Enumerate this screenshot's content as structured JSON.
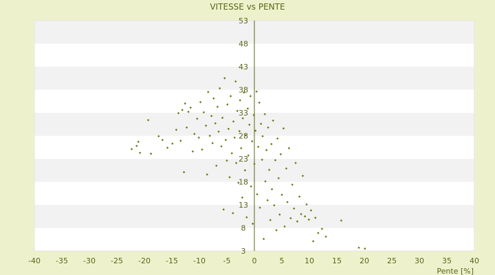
{
  "chart_data": {
    "type": "scatter",
    "title": "VITESSE vs PENTE",
    "xlabel": "Pente [%]",
    "ylabel": "",
    "xlim": [
      -40,
      40
    ],
    "ylim": [
      3,
      53
    ],
    "x_ticks": [
      "-40",
      "-35",
      "-30",
      "-25",
      "-20",
      "-15",
      "-10",
      "-5",
      "0",
      "5",
      "10",
      "15",
      "20",
      "25",
      "30",
      "35",
      "40"
    ],
    "y_ticks": [
      "3",
      "8",
      "13",
      "18",
      "23",
      "28",
      "33",
      "38",
      "43",
      "48",
      "53"
    ],
    "grid": true,
    "legend": "none",
    "colors": {
      "background": "#eef2cc",
      "plot_band_light": "#ffffff",
      "plot_band_dark": "#f2f2f2",
      "gridline": "#e4e4e4",
      "axis": "#5a6418",
      "point": "#6b7a12"
    },
    "series": [
      {
        "points": [
          [
            -22.3,
            25.1
          ],
          [
            -21.4,
            25.8
          ],
          [
            -21.1,
            26.7
          ],
          [
            -20.8,
            24.3
          ],
          [
            -19.3,
            31.4
          ],
          [
            -18.8,
            24.1
          ],
          [
            -17.4,
            27.9
          ],
          [
            -16.7,
            27.1
          ],
          [
            -15.8,
            25.4
          ],
          [
            -14.9,
            26.3
          ],
          [
            -14.2,
            29.3
          ],
          [
            -13.8,
            32.9
          ],
          [
            -13.4,
            26.9
          ],
          [
            -13.1,
            33.6
          ],
          [
            -12.8,
            20.1
          ],
          [
            -12.6,
            35.0
          ],
          [
            -12.3,
            29.8
          ],
          [
            -12.0,
            33.2
          ],
          [
            -11.6,
            34.1
          ],
          [
            -11.2,
            24.6
          ],
          [
            -10.9,
            28.4
          ],
          [
            -10.4,
            31.7
          ],
          [
            -10.1,
            27.6
          ],
          [
            -9.8,
            35.3
          ],
          [
            -9.5,
            25.0
          ],
          [
            -9.2,
            33.1
          ],
          [
            -8.8,
            30.2
          ],
          [
            -8.6,
            19.6
          ],
          [
            -8.4,
            37.5
          ],
          [
            -8.1,
            28.0
          ],
          [
            -7.8,
            32.3
          ],
          [
            -7.6,
            26.4
          ],
          [
            -7.4,
            36.1
          ],
          [
            -7.1,
            30.7
          ],
          [
            -6.9,
            21.5
          ],
          [
            -6.7,
            34.3
          ],
          [
            -6.5,
            28.9
          ],
          [
            -6.3,
            38.3
          ],
          [
            -6.0,
            25.7
          ],
          [
            -5.8,
            31.9
          ],
          [
            -5.6,
            12.0
          ],
          [
            -5.4,
            40.5
          ],
          [
            -5.2,
            27.1
          ],
          [
            -5.0,
            22.6
          ],
          [
            -4.9,
            34.8
          ],
          [
            -4.7,
            29.5
          ],
          [
            -4.5,
            19.0
          ],
          [
            -4.3,
            36.6
          ],
          [
            -4.1,
            24.2
          ],
          [
            -3.9,
            11.2
          ],
          [
            -3.8,
            31.1
          ],
          [
            -3.6,
            27.6
          ],
          [
            -3.4,
            39.8
          ],
          [
            -3.3,
            22.1
          ],
          [
            -3.1,
            33.4
          ],
          [
            -2.9,
            17.8
          ],
          [
            -2.7,
            29.0
          ],
          [
            -2.6,
            35.7
          ],
          [
            -2.4,
            25.3
          ],
          [
            -2.2,
            14.6
          ],
          [
            -2.1,
            31.8
          ],
          [
            -1.9,
            37.4
          ],
          [
            -1.7,
            20.5
          ],
          [
            -1.6,
            28.1
          ],
          [
            -1.4,
            10.3
          ],
          [
            -1.2,
            33.9
          ],
          [
            -1.1,
            23.7
          ],
          [
            -0.9,
            30.4
          ],
          [
            -0.7,
            36.6
          ],
          [
            -0.6,
            17.0
          ],
          [
            -0.4,
            26.8
          ],
          [
            -0.3,
            8.9
          ],
          [
            -0.1,
            32.5
          ],
          [
            0.0,
            21.9
          ],
          [
            0.2,
            29.1
          ],
          [
            0.4,
            37.6
          ],
          [
            0.5,
            15.3
          ],
          [
            0.7,
            25.6
          ],
          [
            0.9,
            35.2
          ],
          [
            1.0,
            12.4
          ],
          [
            1.2,
            30.6
          ],
          [
            1.4,
            22.8
          ],
          [
            1.5,
            27.9
          ],
          [
            1.7,
            5.6
          ],
          [
            1.9,
            32.7
          ],
          [
            2.0,
            18.1
          ],
          [
            2.2,
            24.9
          ],
          [
            2.4,
            14.0
          ],
          [
            2.5,
            29.8
          ],
          [
            2.7,
            20.6
          ],
          [
            2.9,
            9.7
          ],
          [
            3.1,
            26.2
          ],
          [
            3.2,
            16.4
          ],
          [
            3.4,
            31.3
          ],
          [
            3.6,
            12.9
          ],
          [
            3.8,
            22.7
          ],
          [
            4.0,
            7.5
          ],
          [
            4.2,
            27.4
          ],
          [
            4.4,
            18.8
          ],
          [
            4.6,
            10.9
          ],
          [
            4.8,
            24.0
          ],
          [
            5.0,
            15.2
          ],
          [
            5.3,
            29.6
          ],
          [
            5.5,
            8.3
          ],
          [
            5.8,
            20.9
          ],
          [
            6.0,
            13.6
          ],
          [
            6.3,
            25.3
          ],
          [
            6.6,
            10.1
          ],
          [
            6.9,
            17.4
          ],
          [
            7.2,
            12.2
          ],
          [
            7.5,
            22.1
          ],
          [
            7.8,
            9.4
          ],
          [
            8.2,
            14.8
          ],
          [
            8.5,
            11.0
          ],
          [
            8.8,
            19.3
          ],
          [
            9.2,
            10.5
          ],
          [
            9.5,
            13.1
          ],
          [
            9.9,
            9.8
          ],
          [
            10.3,
            11.8
          ],
          [
            10.7,
            5.1
          ],
          [
            11.1,
            10.2
          ],
          [
            11.6,
            6.9
          ],
          [
            12.3,
            7.8
          ],
          [
            13.0,
            6.1
          ],
          [
            15.8,
            9.6
          ],
          [
            19.0,
            3.7
          ],
          [
            20.1,
            3.5
          ]
        ]
      }
    ]
  }
}
